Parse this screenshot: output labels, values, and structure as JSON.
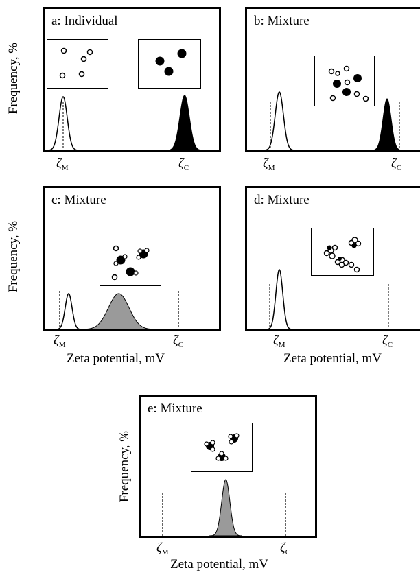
{
  "axes": {
    "ylabel": "Frequency, %",
    "xlabel": "Zeta potential, mV",
    "zeta_m_symbol": "ζ",
    "zeta_m_sub": "M",
    "zeta_c_symbol": "ζ",
    "zeta_c_sub": "C"
  },
  "panels": [
    {
      "id": "a",
      "title": "a: Individual"
    },
    {
      "id": "b",
      "title": "b: Mixture"
    },
    {
      "id": "c",
      "title": "c: Mixture"
    },
    {
      "id": "d",
      "title": "d: Mixture"
    },
    {
      "id": "e",
      "title": "e: Mixture"
    }
  ],
  "colors": {
    "line": "#000000",
    "filled_peak": "#000000",
    "hatched_peak": "#9a9a9a",
    "background": "#ffffff"
  }
}
